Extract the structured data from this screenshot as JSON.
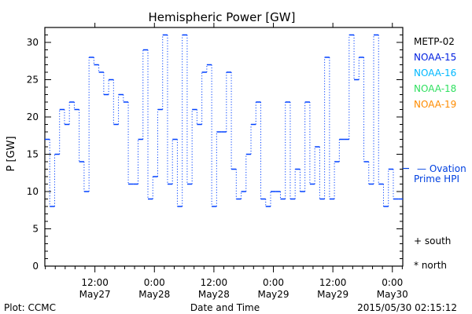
{
  "chart_data": {
    "type": "line",
    "title": "Hemispheric Power [GW]",
    "xlabel": "Date and Time",
    "ylabel": "P [GW]",
    "ylim": [
      0,
      32
    ],
    "xlim_hours_from_may27_0000": [
      1.9,
      74.1
    ],
    "step_hours": 0.99,
    "grid": false,
    "y_ticks": [
      0,
      5,
      10,
      15,
      20,
      25,
      30
    ],
    "x_ticks": [
      {
        "hour": 12,
        "time": "12:00",
        "date": "May27"
      },
      {
        "hour": 24,
        "time": "0:00",
        "date": "May28"
      },
      {
        "hour": 36,
        "time": "12:00",
        "date": "May28"
      },
      {
        "hour": 48,
        "time": "0:00",
        "date": "May29"
      },
      {
        "hour": 60,
        "time": "12:00",
        "date": "May29"
      },
      {
        "hour": 72,
        "time": "0:00",
        "date": "May30"
      }
    ],
    "series": [
      {
        "name": "NOAA-15",
        "color": "#0040ff",
        "values": [
          17,
          8,
          15,
          21,
          19,
          22,
          21,
          14,
          10,
          28,
          27,
          26,
          23,
          25,
          19,
          23,
          22,
          11,
          11,
          17,
          29,
          9,
          12,
          21,
          31,
          11,
          17,
          8,
          31,
          11,
          21,
          19,
          26,
          27,
          8,
          18,
          18,
          26,
          13,
          9,
          10,
          15,
          19,
          22,
          9,
          8,
          10,
          10,
          9,
          22,
          9,
          13,
          10,
          22,
          11,
          16,
          9,
          28,
          9,
          14,
          17,
          17,
          31,
          25,
          28,
          14,
          11,
          31,
          11,
          8,
          13,
          9,
          9
        ]
      }
    ],
    "ovation_prime_hpi": 13.1,
    "legend": [
      {
        "label": "METP-02",
        "color": "#000000"
      },
      {
        "label": "NOAA-15",
        "color": "#0020e0"
      },
      {
        "label": "NOAA-16",
        "color": "#00b8ff"
      },
      {
        "label": "NOAA-18",
        "color": "#30e060"
      },
      {
        "label": "NOAA-19",
        "color": "#ff8c00"
      }
    ],
    "ovation_label_1": "— Ovation",
    "ovation_label_2": "Prime HPI",
    "ovation_color": "#0040e0",
    "south_label": "+ south",
    "north_label": "* north",
    "legend_placement": "right"
  },
  "footer": {
    "plot_source": "Plot: CCMC",
    "timestamp": "2015/05/30 02:15:12"
  }
}
